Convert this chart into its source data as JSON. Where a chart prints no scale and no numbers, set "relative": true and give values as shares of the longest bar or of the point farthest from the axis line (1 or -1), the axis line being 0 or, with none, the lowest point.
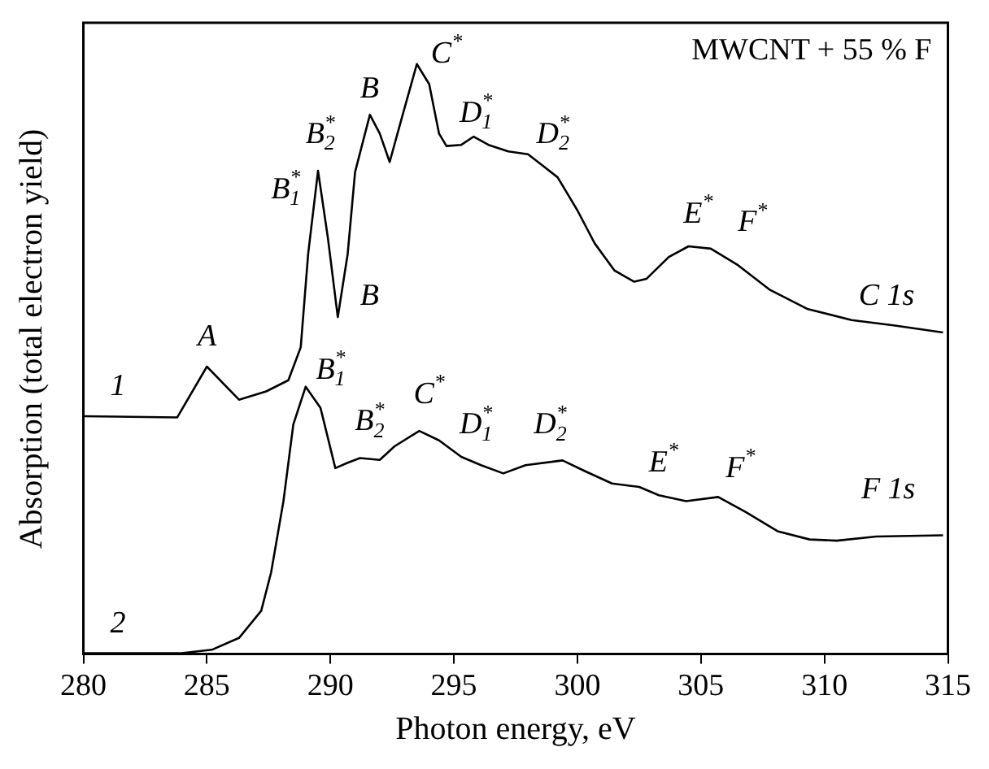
{
  "chart_data": {
    "type": "line",
    "title": "MWCNT + 55 % F",
    "xlabel": "Photon energy, eV",
    "ylabel": "Absorption (total electron yield)",
    "relative": true,
    "xlim": [
      280,
      315
    ],
    "xticks": [
      280,
      285,
      290,
      295,
      300,
      305,
      310,
      315
    ],
    "grid": false,
    "legend": false,
    "marker": "none",
    "line_style": "solid",
    "series": [
      {
        "color": "#000000",
        "x": [
          280,
          283.8,
          285.0,
          286.3,
          287.4,
          288.3,
          288.8,
          289.1,
          289.5,
          289.9,
          290.3,
          290.7,
          291.0,
          291.6,
          292.0,
          292.4,
          292.9,
          293.5,
          294.0,
          294.4,
          294.7,
          295.3,
          295.8,
          296.4,
          297.2,
          298.0,
          298.5,
          299.2,
          300.0,
          300.7,
          301.5,
          302.3,
          302.8,
          303.7,
          304.5,
          305.4,
          306.5,
          307.8,
          309.3,
          311.1,
          312.8,
          314.8
        ],
        "values": [
          0.403,
          0.401,
          0.487,
          0.431,
          0.445,
          0.464,
          0.52,
          0.678,
          0.819,
          0.705,
          0.571,
          0.678,
          0.817,
          0.914,
          0.882,
          0.834,
          0.91,
          1.0,
          0.966,
          0.882,
          0.861,
          0.863,
          0.877,
          0.863,
          0.852,
          0.847,
          0.831,
          0.808,
          0.752,
          0.696,
          0.65,
          0.631,
          0.636,
          0.673,
          0.691,
          0.687,
          0.659,
          0.617,
          0.585,
          0.566,
          0.557,
          0.545
        ]
      },
      {
        "color": "#000000",
        "x": [
          280,
          283.9,
          285.2,
          286.3,
          287.2,
          287.6,
          288.1,
          288.5,
          289.0,
          289.6,
          290.2,
          290.7,
          291.2,
          292.0,
          292.6,
          293.6,
          294.4,
          295.3,
          296.1,
          297.0,
          297.9,
          299.4,
          300.3,
          301.4,
          302.5,
          303.3,
          304.4,
          305.7,
          306.8,
          308.1,
          309.4,
          310.5,
          312.1,
          314.8
        ],
        "values": [
          0.001,
          0.001,
          0.007,
          0.027,
          0.073,
          0.138,
          0.259,
          0.389,
          0.453,
          0.417,
          0.315,
          0.324,
          0.332,
          0.329,
          0.352,
          0.378,
          0.362,
          0.334,
          0.32,
          0.306,
          0.32,
          0.328,
          0.31,
          0.289,
          0.283,
          0.269,
          0.259,
          0.266,
          0.241,
          0.208,
          0.194,
          0.192,
          0.199,
          0.201
        ]
      }
    ],
    "annotations": [
      "1",
      "2",
      "A",
      "B$_{1}$$^{*}$",
      "B$_{2}$$^{*}$",
      "B",
      "B",
      "C$^{*}$",
      "D$_{1}$$^{*}$",
      "D$_{2}$$^{*}$",
      "E$^{*}$",
      "F$^{*}$",
      "C 1s",
      "B$_{1}$$^{*}$",
      "B$_{2}$$^{*}$",
      "C$^{*}$",
      "D$_{1}$$^{*}$",
      "D$_{2}$$^{*}$",
      "E$^{*}$",
      "F$^{*}$",
      "F 1s"
    ]
  }
}
